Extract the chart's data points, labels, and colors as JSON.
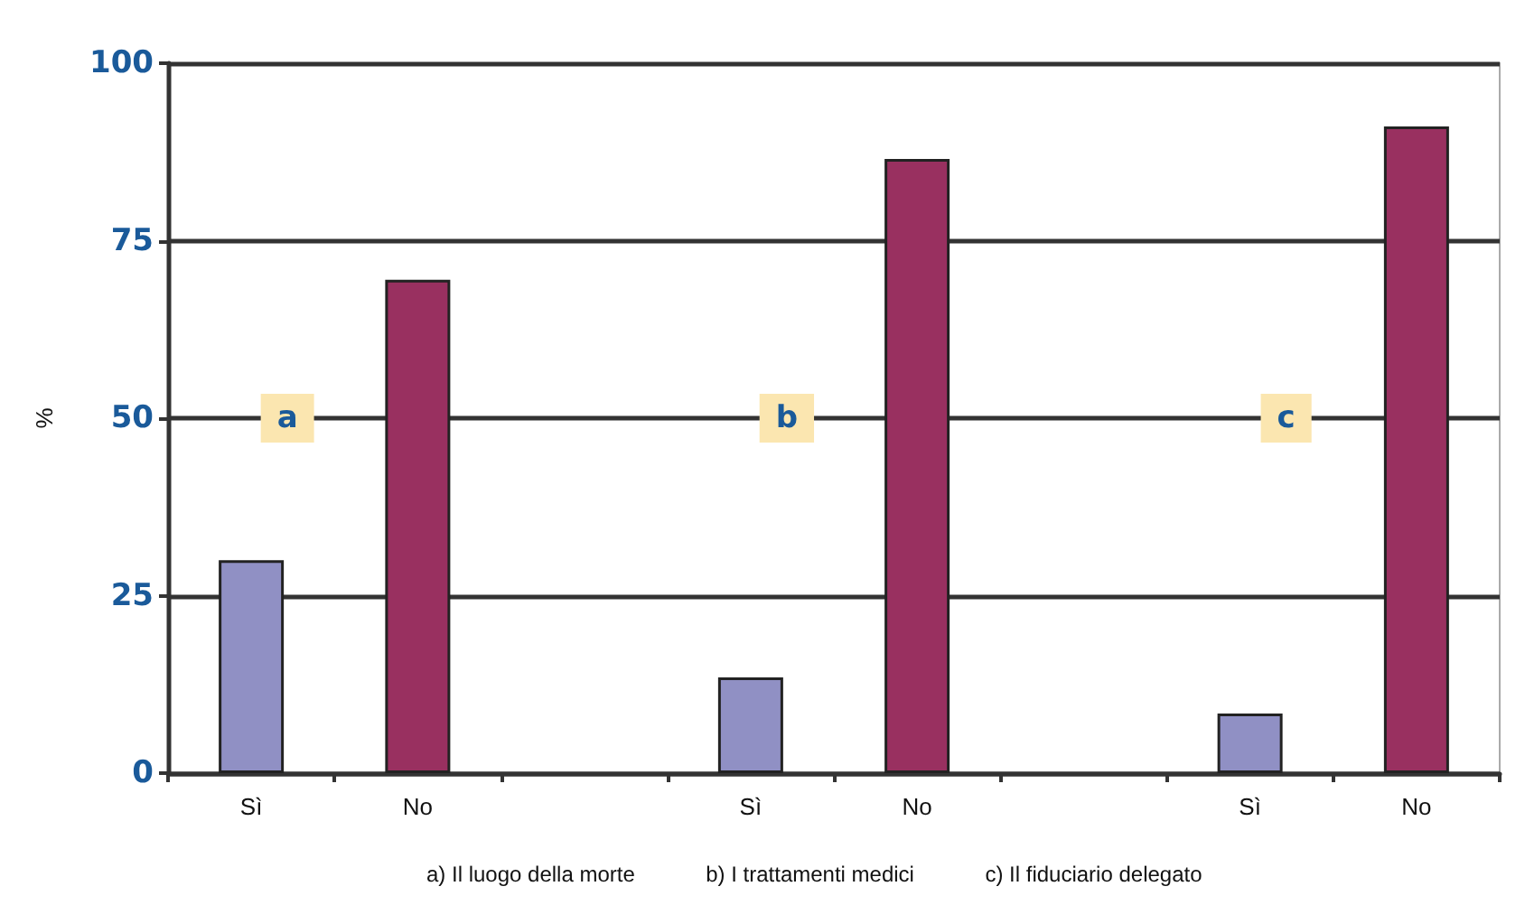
{
  "chart_data": {
    "type": "bar",
    "ylabel": "%",
    "categories": [
      "Sì",
      "No",
      null,
      "Sì",
      "No",
      null,
      "Sì",
      "No"
    ],
    "values": [
      30,
      69.5,
      null,
      13.5,
      86.5,
      null,
      8.4,
      91.1
    ],
    "colors": [
      "#9090c4",
      "#993060",
      "#9090c4",
      "#9090c4",
      "#993060",
      "#9090c4",
      "#9090c4",
      "#993060"
    ],
    "ylim": [
      0,
      100
    ],
    "yticks": [
      0,
      25,
      50,
      75,
      100
    ],
    "grid": "y",
    "annotations": [
      "a",
      "b",
      "c",
      "a) Il luogo della morte",
      "b) I trattamenti medici",
      "c) Il fiduciario delegato"
    ]
  }
}
